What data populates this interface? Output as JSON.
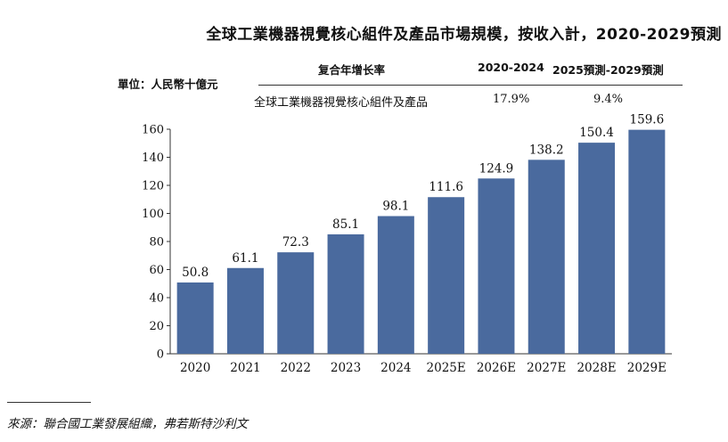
{
  "title": "全球工業機器視覺核心組件及產品市場規模，按收入計，2020-2029預測",
  "unit_label": "單位：人民幣十億元",
  "cagr_table": {
    "header_label": "复合年增长率",
    "period_1": "2020-2024",
    "period_2": "2025預測-2029預測",
    "row_label": "全球工業機器視覺核心組件及產品",
    "value_1": "17.9%",
    "value_2": "9.4%"
  },
  "source": "來源：聯合國工業發展組織，弗若斯特沙利文",
  "colors": {
    "bar": "#4a6a9e",
    "axis": "#333333",
    "text": "#111111"
  },
  "chart_data": {
    "type": "bar",
    "title": "全球工業機器視覺核心組件及產品市場規模，按收入計，2020-2029預測",
    "xlabel": "",
    "ylabel": "單位：人民幣十億元",
    "categories": [
      "2020",
      "2021",
      "2022",
      "2023",
      "2024",
      "2025E",
      "2026E",
      "2027E",
      "2028E",
      "2029E"
    ],
    "values": [
      50.8,
      61.1,
      72.3,
      85.1,
      98.1,
      111.6,
      124.9,
      138.2,
      150.4,
      159.6
    ],
    "data_labels": [
      "50.8",
      "61.1",
      "72.3",
      "85.1",
      "98.1",
      "111.6",
      "124.9",
      "138.2",
      "150.4",
      "159.6"
    ],
    "ylim": [
      0,
      160
    ],
    "yticks": [
      0,
      20,
      40,
      60,
      80,
      100,
      120,
      140,
      160
    ],
    "grid": false,
    "legend": "none"
  }
}
